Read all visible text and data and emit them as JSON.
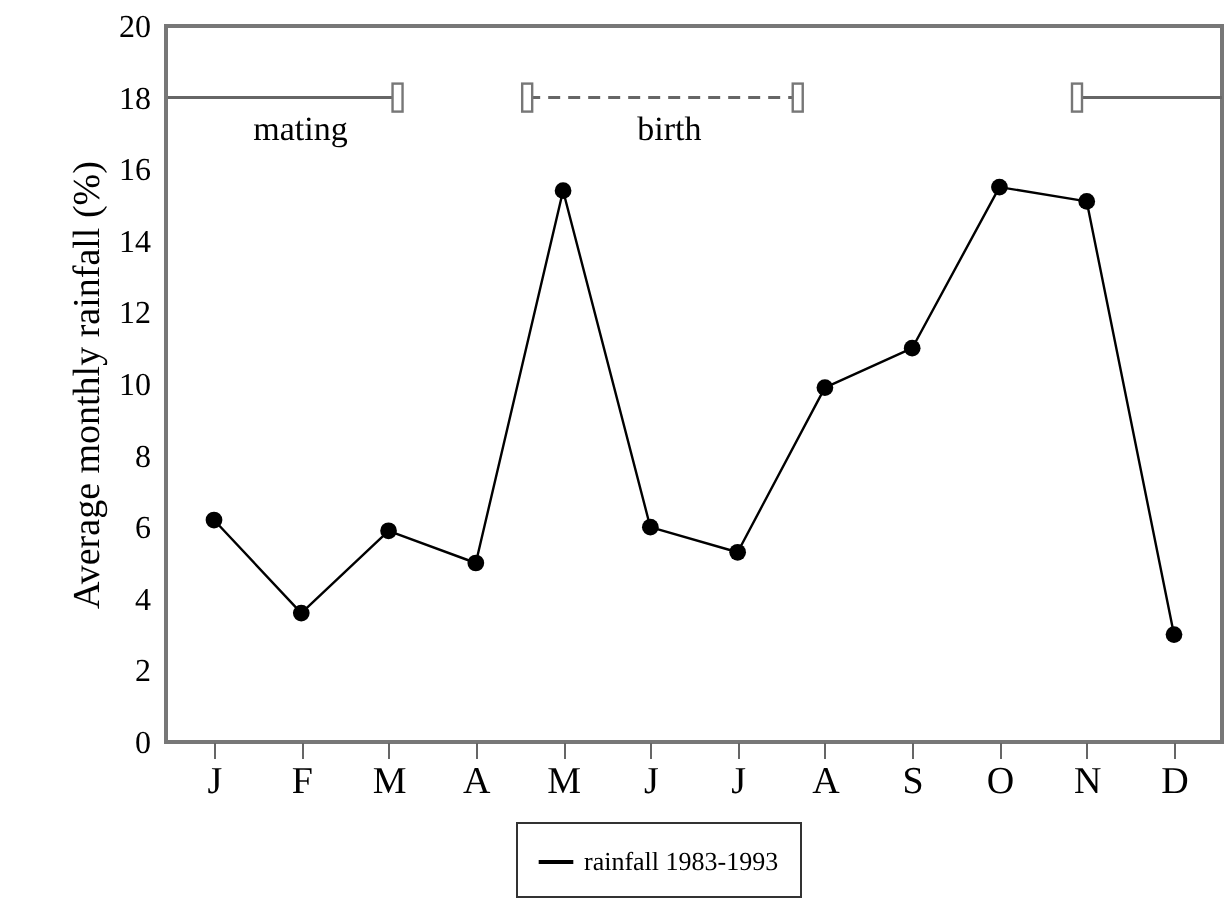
{
  "chart_data": {
    "type": "line",
    "ylabel": "Average monthly rainfall (%)",
    "categories": [
      "J",
      "F",
      "M",
      "A",
      "M",
      "J",
      "J",
      "A",
      "S",
      "O",
      "N",
      "D"
    ],
    "series": [
      {
        "name": "rainfall 1983-1993",
        "color": "#000000",
        "values": [
          6.2,
          3.6,
          5.9,
          5.0,
          15.4,
          6.0,
          5.3,
          9.9,
          11.0,
          15.5,
          15.1,
          3.0
        ]
      }
    ],
    "ylim": [
      0,
      20
    ],
    "yticks": [
      0,
      2,
      4,
      6,
      8,
      10,
      12,
      14,
      16,
      18,
      20
    ],
    "marker": "circle",
    "line_style": "solid",
    "legend": "bottom",
    "grid": false,
    "annotations": [
      "mating",
      "birth"
    ]
  }
}
